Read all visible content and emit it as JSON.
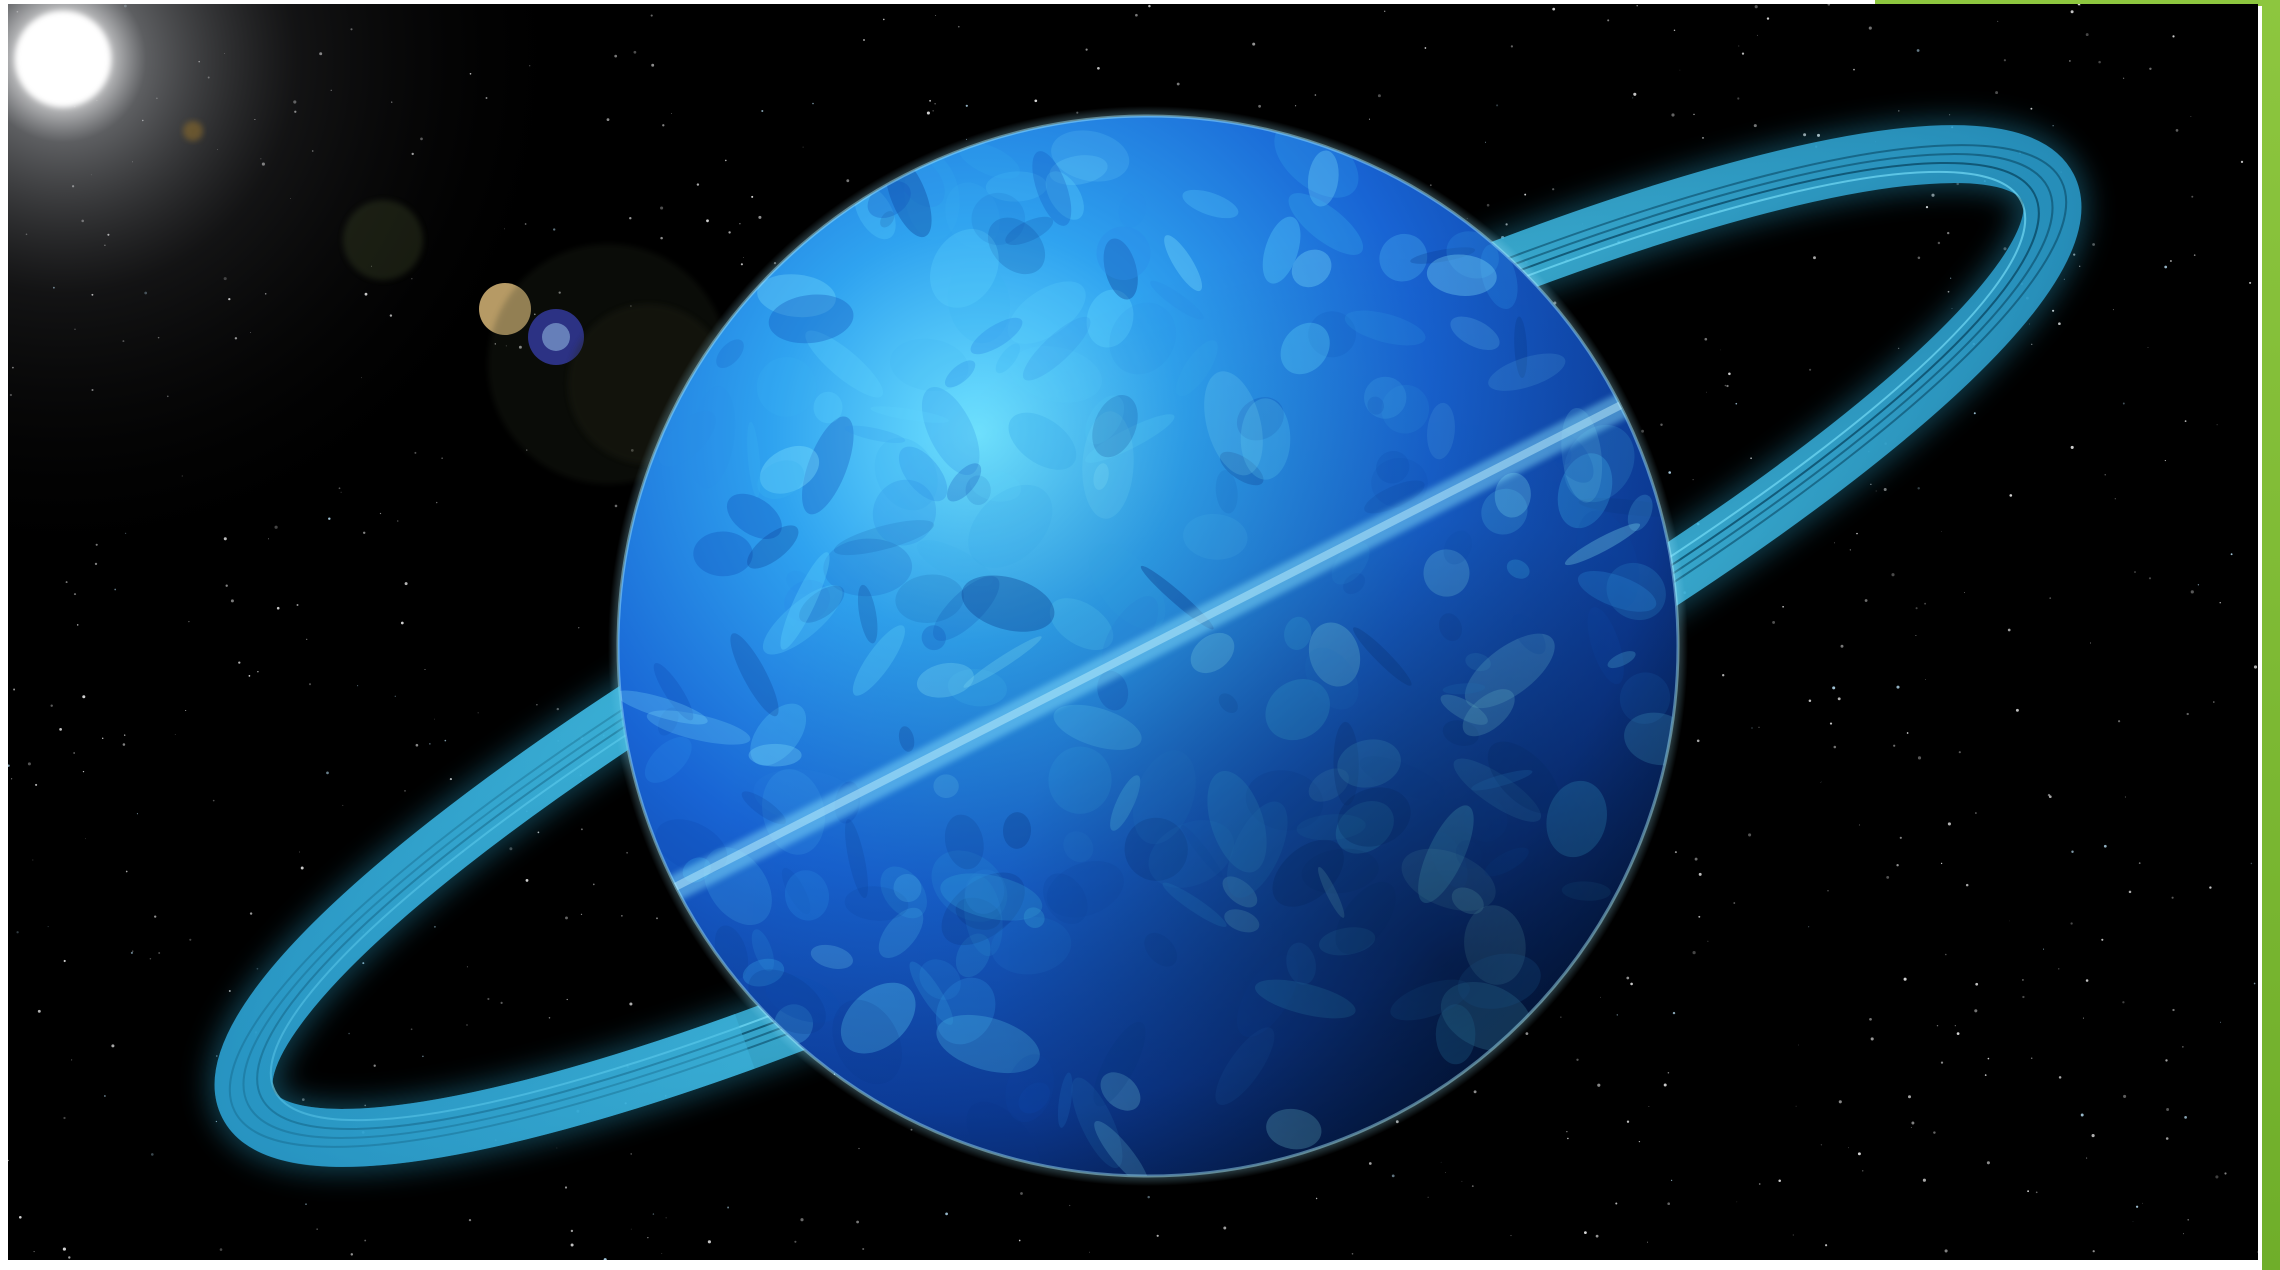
{
  "slide": {
    "background_color": "#ffffff",
    "accent_color": "#8dc63f"
  },
  "image": {
    "subject": "ringed-blue-planet",
    "space_color": "#000000",
    "planet_color": "#1a6fd6",
    "ring_color": "#3fc4ee",
    "sun_color": "#ffffff"
  }
}
